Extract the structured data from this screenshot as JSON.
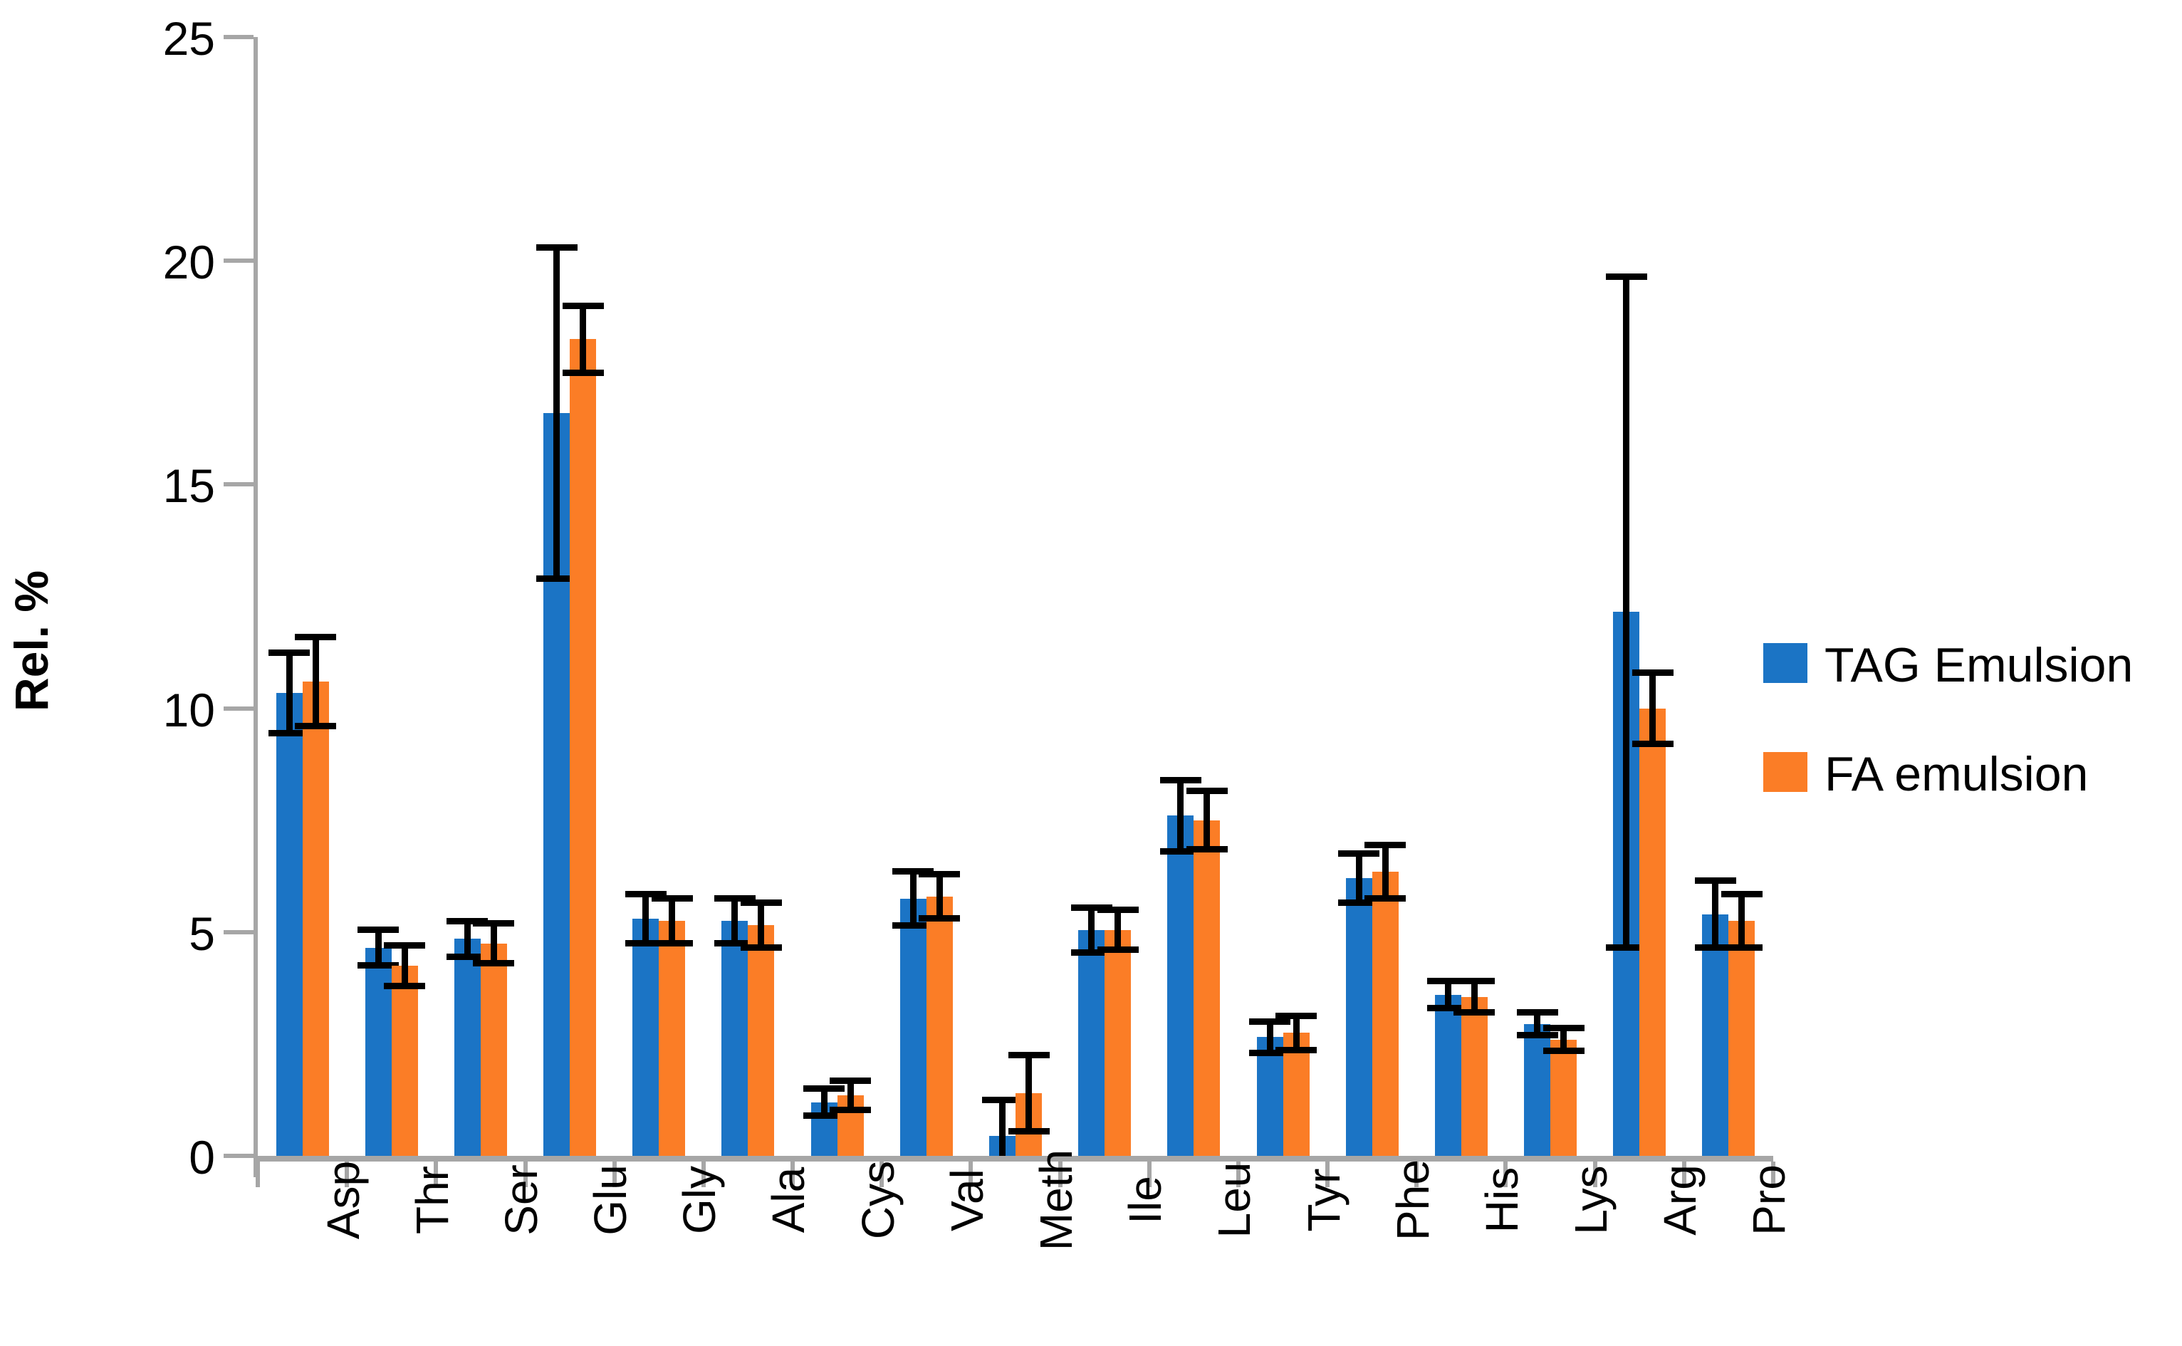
{
  "chart_data": {
    "type": "bar",
    "title": "",
    "xlabel": "",
    "ylabel": "Rel. %",
    "ylim": [
      0,
      25
    ],
    "yticks": [
      0,
      5,
      10,
      15,
      20,
      25
    ],
    "grid": false,
    "legend_position": "right",
    "axis_color": "#a6a6a6",
    "error_bar_color": "#000000",
    "categories": [
      "Asp",
      "Thr",
      "Ser",
      "Glu",
      "Gly",
      "Ala",
      "Cys",
      "Val",
      "Meth",
      "Ile",
      "Leu",
      "Tyr",
      "Phe",
      "His",
      "Lys",
      "Arg",
      "Pro"
    ],
    "series": [
      {
        "name": "TAG Emulsion",
        "color": "#1b74c5",
        "values": [
          10.35,
          4.65,
          4.85,
          16.6,
          5.3,
          5.25,
          1.2,
          5.75,
          0.45,
          5.05,
          7.6,
          2.65,
          6.2,
          3.6,
          2.95,
          12.15,
          5.4
        ],
        "errors": [
          0.9,
          0.4,
          0.4,
          3.7,
          0.55,
          0.5,
          0.3,
          0.6,
          0.8,
          0.5,
          0.8,
          0.35,
          0.55,
          0.3,
          0.25,
          7.5,
          0.75
        ]
      },
      {
        "name": "FA emulsion",
        "color": "#fb7d26",
        "values": [
          10.6,
          4.25,
          4.75,
          18.25,
          5.25,
          5.15,
          1.35,
          5.8,
          1.4,
          5.05,
          7.5,
          2.75,
          6.35,
          3.55,
          2.6,
          10.0,
          5.25
        ],
        "errors": [
          1.0,
          0.45,
          0.45,
          0.75,
          0.5,
          0.5,
          0.33,
          0.5,
          0.85,
          0.45,
          0.65,
          0.38,
          0.6,
          0.35,
          0.25,
          0.8,
          0.6
        ]
      }
    ]
  }
}
